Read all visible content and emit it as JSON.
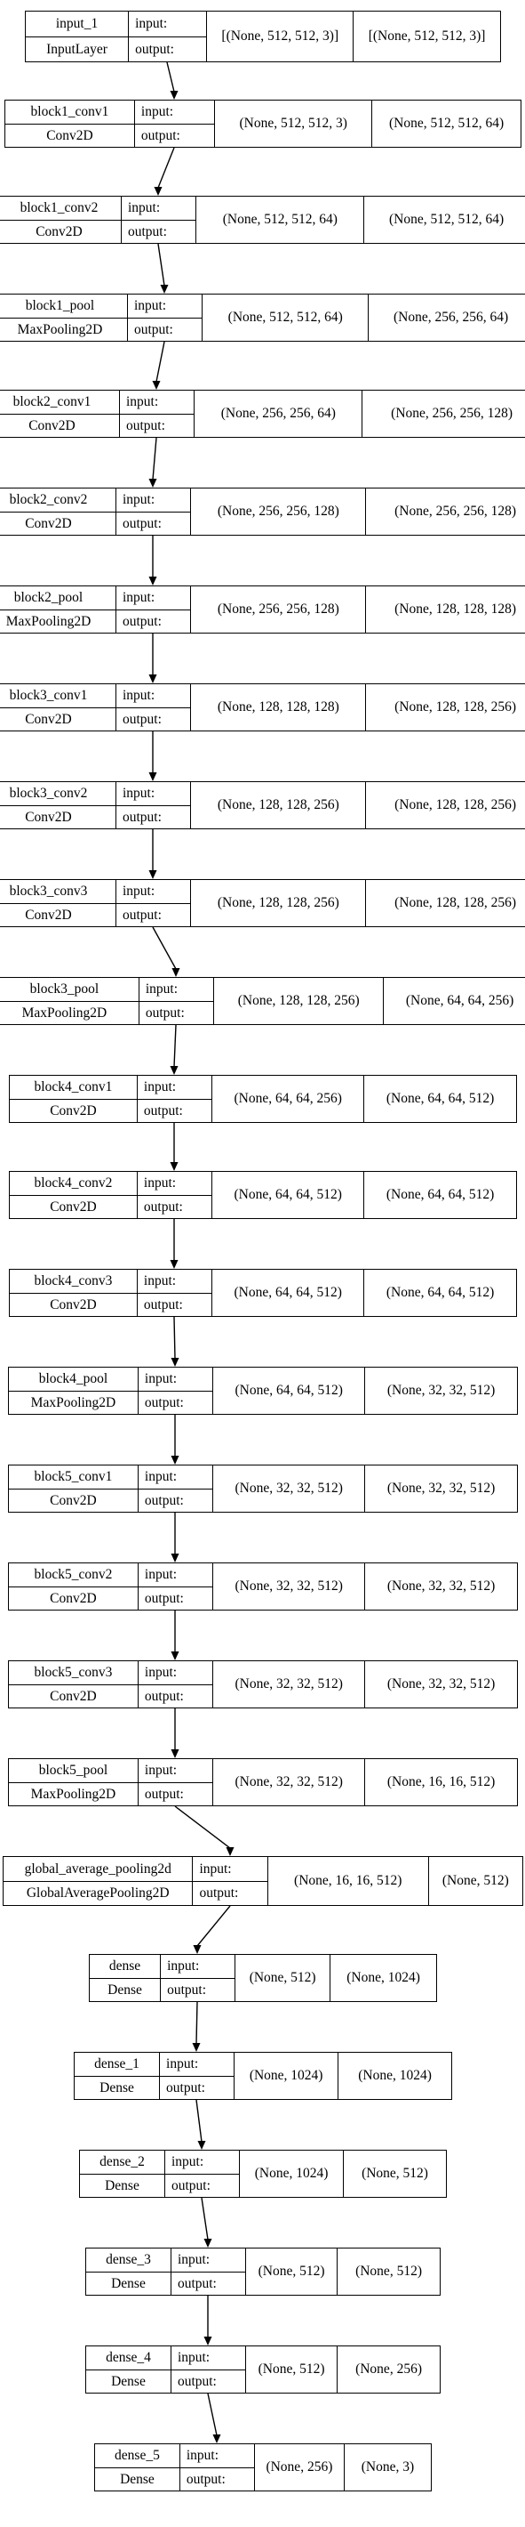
{
  "layers": [
    {
      "name": "input_1",
      "type": "InputLayer",
      "input_label": "input:",
      "output_label": "output:",
      "input_shape": "[(None, 512, 512, 3)]",
      "output_shape": "[(None, 512, 512, 3)]"
    },
    {
      "name": "block1_conv1",
      "type": "Conv2D",
      "input_label": "input:",
      "output_label": "output:",
      "input_shape": "(None, 512, 512, 3)",
      "output_shape": "(None, 512, 512, 64)"
    },
    {
      "name": "block1_conv2",
      "type": "Conv2D",
      "input_label": "input:",
      "output_label": "output:",
      "input_shape": "(None, 512, 512, 64)",
      "output_shape": "(None, 512, 512, 64)"
    },
    {
      "name": "block1_pool",
      "type": "MaxPooling2D",
      "input_label": "input:",
      "output_label": "output:",
      "input_shape": "(None, 512, 512, 64)",
      "output_shape": "(None, 256, 256, 64)"
    },
    {
      "name": "block2_conv1",
      "type": "Conv2D",
      "input_label": "input:",
      "output_label": "output:",
      "input_shape": "(None, 256, 256, 64)",
      "output_shape": "(None, 256, 256, 128)"
    },
    {
      "name": "block2_conv2",
      "type": "Conv2D",
      "input_label": "input:",
      "output_label": "output:",
      "input_shape": "(None, 256, 256, 128)",
      "output_shape": "(None, 256, 256, 128)"
    },
    {
      "name": "block2_pool",
      "type": "MaxPooling2D",
      "input_label": "input:",
      "output_label": "output:",
      "input_shape": "(None, 256, 256, 128)",
      "output_shape": "(None, 128, 128, 128)"
    },
    {
      "name": "block3_conv1",
      "type": "Conv2D",
      "input_label": "input:",
      "output_label": "output:",
      "input_shape": "(None, 128, 128, 128)",
      "output_shape": "(None, 128, 128, 256)"
    },
    {
      "name": "block3_conv2",
      "type": "Conv2D",
      "input_label": "input:",
      "output_label": "output:",
      "input_shape": "(None, 128, 128, 256)",
      "output_shape": "(None, 128, 128, 256)"
    },
    {
      "name": "block3_conv3",
      "type": "Conv2D",
      "input_label": "input:",
      "output_label": "output:",
      "input_shape": "(None, 128, 128, 256)",
      "output_shape": "(None, 128, 128, 256)"
    },
    {
      "name": "block3_pool",
      "type": "MaxPooling2D",
      "input_label": "input:",
      "output_label": "output:",
      "input_shape": "(None, 128, 128, 256)",
      "output_shape": "(None, 64, 64, 256)"
    },
    {
      "name": "block4_conv1",
      "type": "Conv2D",
      "input_label": "input:",
      "output_label": "output:",
      "input_shape": "(None, 64, 64, 256)",
      "output_shape": "(None, 64, 64, 512)"
    },
    {
      "name": "block4_conv2",
      "type": "Conv2D",
      "input_label": "input:",
      "output_label": "output:",
      "input_shape": "(None, 64, 64, 512)",
      "output_shape": "(None, 64, 64, 512)"
    },
    {
      "name": "block4_conv3",
      "type": "Conv2D",
      "input_label": "input:",
      "output_label": "output:",
      "input_shape": "(None, 64, 64, 512)",
      "output_shape": "(None, 64, 64, 512)"
    },
    {
      "name": "block4_pool",
      "type": "MaxPooling2D",
      "input_label": "input:",
      "output_label": "output:",
      "input_shape": "(None, 64, 64, 512)",
      "output_shape": "(None, 32, 32, 512)"
    },
    {
      "name": "block5_conv1",
      "type": "Conv2D",
      "input_label": "input:",
      "output_label": "output:",
      "input_shape": "(None, 32, 32, 512)",
      "output_shape": "(None, 32, 32, 512)"
    },
    {
      "name": "block5_conv2",
      "type": "Conv2D",
      "input_label": "input:",
      "output_label": "output:",
      "input_shape": "(None, 32, 32, 512)",
      "output_shape": "(None, 32, 32, 512)"
    },
    {
      "name": "block5_conv3",
      "type": "Conv2D",
      "input_label": "input:",
      "output_label": "output:",
      "input_shape": "(None, 32, 32, 512)",
      "output_shape": "(None, 32, 32, 512)"
    },
    {
      "name": "block5_pool",
      "type": "MaxPooling2D",
      "input_label": "input:",
      "output_label": "output:",
      "input_shape": "(None, 32, 32, 512)",
      "output_shape": "(None, 16, 16, 512)"
    },
    {
      "name": "global_average_pooling2d",
      "type": "GlobalAveragePooling2D",
      "input_label": "input:",
      "output_label": "output:",
      "input_shape": "(None, 16, 16, 512)",
      "output_shape": "(None, 512)"
    },
    {
      "name": "dense",
      "type": "Dense",
      "input_label": "input:",
      "output_label": "output:",
      "input_shape": "(None, 512)",
      "output_shape": "(None, 1024)"
    },
    {
      "name": "dense_1",
      "type": "Dense",
      "input_label": "input:",
      "output_label": "output:",
      "input_shape": "(None, 1024)",
      "output_shape": "(None, 1024)"
    },
    {
      "name": "dense_2",
      "type": "Dense",
      "input_label": "input:",
      "output_label": "output:",
      "input_shape": "(None, 1024)",
      "output_shape": "(None, 512)"
    },
    {
      "name": "dense_3",
      "type": "Dense",
      "input_label": "input:",
      "output_label": "output:",
      "input_shape": "(None, 512)",
      "output_shape": "(None, 512)"
    },
    {
      "name": "dense_4",
      "type": "Dense",
      "input_label": "input:",
      "output_label": "output:",
      "input_shape": "(None, 512)",
      "output_shape": "(None, 256)"
    },
    {
      "name": "dense_5",
      "type": "Dense",
      "input_label": "input:",
      "output_label": "output:",
      "input_shape": "(None, 256)",
      "output_shape": "(None, 3)"
    }
  ]
}
